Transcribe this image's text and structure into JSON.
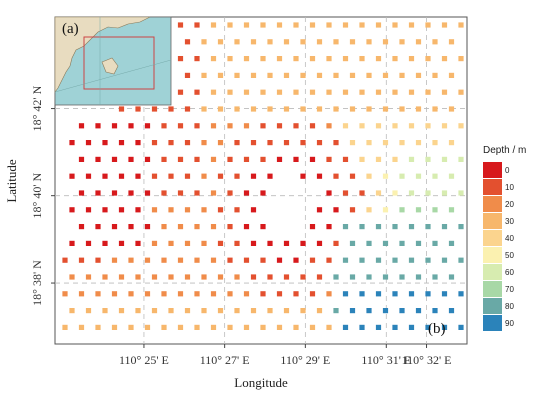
{
  "chart_data": {
    "type": "scatter",
    "xlabel": "Longitude",
    "ylabel": "Latitude",
    "xlim": [
      110.38,
      110.55
    ],
    "ylim": [
      18.61,
      18.735
    ],
    "x_ticks": [
      {
        "value": 110.4167,
        "label": "110° 25' E"
      },
      {
        "value": 110.45,
        "label": "110° 27' E"
      },
      {
        "value": 110.4833,
        "label": "110° 29' E"
      },
      {
        "value": 110.5167,
        "label": "110° 31' E"
      },
      {
        "value": 110.5333,
        "label": "110° 32' E"
      }
    ],
    "y_ticks": [
      {
        "value": 18.6333,
        "label": "18° 38' N"
      },
      {
        "value": 18.6667,
        "label": "18° 40' N"
      },
      {
        "value": 18.7,
        "label": "18° 42' N"
      }
    ],
    "grid": true,
    "legend": {
      "title": "Depth / m",
      "placement": "right",
      "classes": [
        {
          "label": "0",
          "color": "#d7191c"
        },
        {
          "label": "10",
          "color": "#e3502f"
        },
        {
          "label": "20",
          "color": "#f08c4a"
        },
        {
          "label": "30",
          "color": "#f7b76c"
        },
        {
          "label": "40",
          "color": "#fbd48e"
        },
        {
          "label": "50",
          "color": "#fbf1b0"
        },
        {
          "label": "60",
          "color": "#d7ecb0"
        },
        {
          "label": "70",
          "color": "#a8d8a6"
        },
        {
          "label": "80",
          "color": "#69a9a6"
        },
        {
          "label": "90",
          "color": "#2b83ba"
        }
      ]
    },
    "panel_labels": [
      "(a)",
      "(b)"
    ],
    "note": "Survey stations shown as square markers colored by depth class; values estimated from the figure."
  },
  "inset": {
    "land_color": "#e8dcc0",
    "sea_color": "#9fd2d6",
    "frame_color": "#cc4444"
  }
}
